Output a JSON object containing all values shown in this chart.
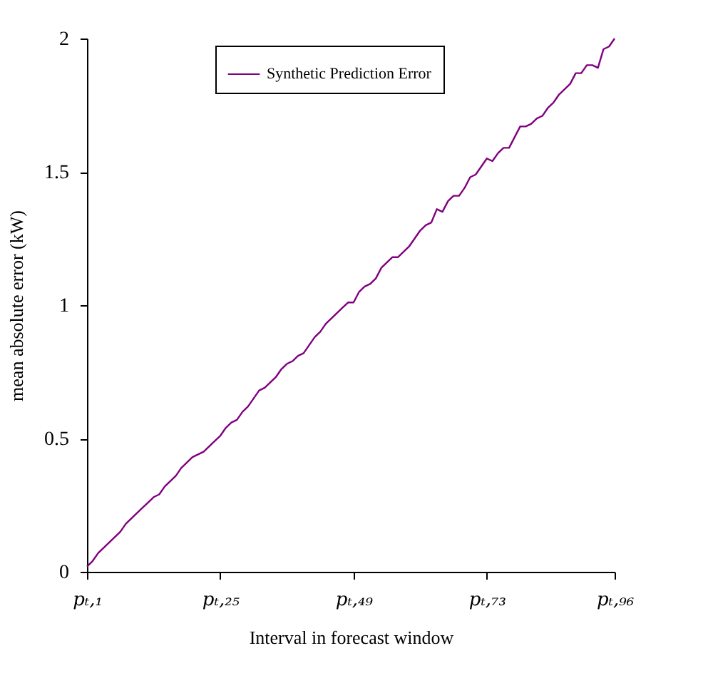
{
  "chart_data": {
    "type": "line",
    "xlabel": "Interval in forecast window",
    "ylabel": "mean absolute error (kW)",
    "categories": [
      "pₜ,₁",
      null,
      null,
      null,
      null,
      null,
      null,
      null,
      null,
      null,
      null,
      null,
      null,
      null,
      null,
      null,
      null,
      null,
      null,
      null,
      null,
      null,
      null,
      null,
      "pₜ,₂₅",
      null,
      null,
      null,
      null,
      null,
      null,
      null,
      null,
      null,
      null,
      null,
      null,
      null,
      null,
      null,
      null,
      null,
      null,
      null,
      null,
      null,
      null,
      null,
      "pₜ,₄₉",
      null,
      null,
      null,
      null,
      null,
      null,
      null,
      null,
      null,
      null,
      null,
      null,
      null,
      null,
      null,
      null,
      null,
      null,
      null,
      null,
      null,
      null,
      null,
      "pₜ,₇₃",
      null,
      null,
      null,
      null,
      null,
      null,
      null,
      null,
      null,
      null,
      null,
      null,
      null,
      null,
      null,
      null,
      null,
      null,
      null,
      null,
      null,
      null,
      "pₜ,₉₆"
    ],
    "ylim": [
      0,
      2
    ],
    "yticks": [
      0,
      0.5,
      1,
      1.5,
      2
    ],
    "grid": false,
    "legend": "top",
    "marker": "none",
    "line_style": "solid",
    "series": [
      {
        "name": "Synthetic Prediction Error",
        "color": "#800080",
        "values": [
          0.02,
          0.04,
          0.07,
          0.09,
          0.11,
          0.13,
          0.15,
          0.18,
          0.2,
          0.22,
          0.24,
          0.26,
          0.28,
          0.29,
          0.32,
          0.34,
          0.36,
          0.39,
          0.41,
          0.43,
          0.44,
          0.45,
          0.47,
          0.49,
          0.51,
          0.54,
          0.56,
          0.57,
          0.6,
          0.62,
          0.65,
          0.68,
          0.69,
          0.71,
          0.73,
          0.76,
          0.78,
          0.79,
          0.81,
          0.82,
          0.85,
          0.88,
          0.9,
          0.93,
          0.95,
          0.97,
          0.99,
          1.01,
          1.01,
          1.05,
          1.07,
          1.08,
          1.1,
          1.14,
          1.16,
          1.18,
          1.18,
          1.2,
          1.22,
          1.25,
          1.28,
          1.3,
          1.31,
          1.36,
          1.35,
          1.39,
          1.41,
          1.41,
          1.44,
          1.48,
          1.49,
          1.52,
          1.55,
          1.54,
          1.57,
          1.59,
          1.59,
          1.63,
          1.67,
          1.67,
          1.68,
          1.7,
          1.71,
          1.74,
          1.76,
          1.79,
          1.81,
          1.83,
          1.87,
          1.87,
          1.9,
          1.9,
          1.89,
          1.96,
          1.97,
          2.0
        ]
      }
    ]
  }
}
